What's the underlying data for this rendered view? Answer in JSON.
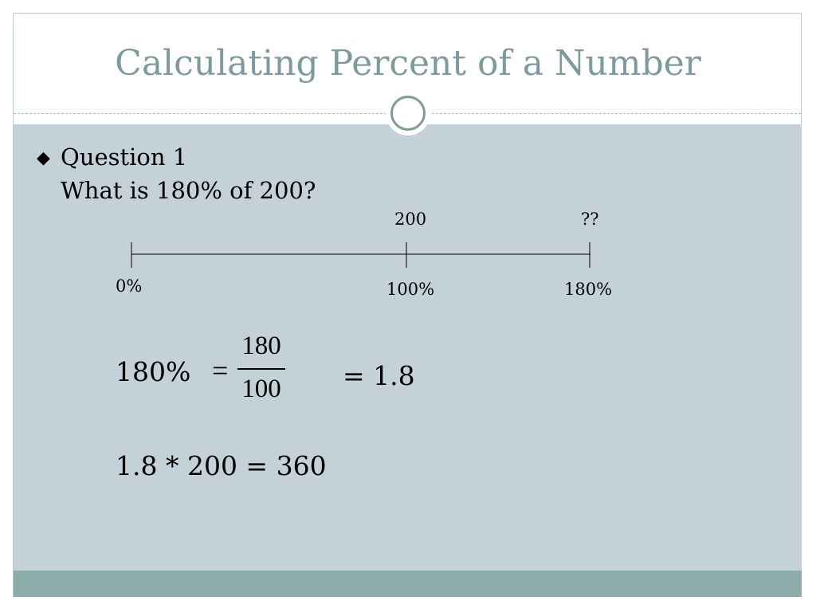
{
  "slide": {
    "title": "Calculating Percent of a Number"
  },
  "question": {
    "bullet_icon": "diamond-icon",
    "heading": "Question 1",
    "prompt": "What is 180% of 200?"
  },
  "number_line": {
    "top_labels": {
      "middle": "200",
      "end": "??"
    },
    "bottom_labels": {
      "start": "0%",
      "middle": "100%",
      "end": "180%"
    }
  },
  "work": {
    "percent": "180%",
    "equals": "=",
    "numerator": "180",
    "denominator": "100",
    "decimal_result": "= 1.8",
    "final_equation": "1.8 * 200 = 360"
  },
  "colors": {
    "title": "#7f9a9c",
    "content_background": "#c5d1d8",
    "footer": "#8cabab"
  }
}
